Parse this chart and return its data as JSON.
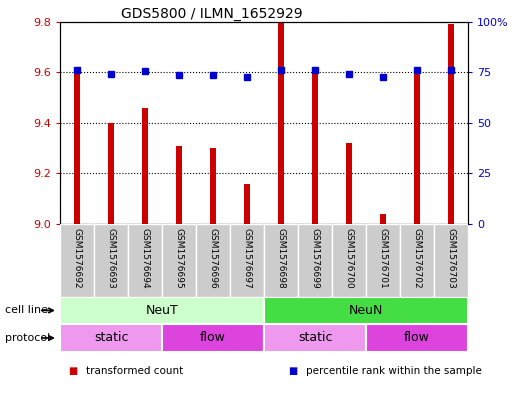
{
  "title": "GDS5800 / ILMN_1652929",
  "samples": [
    "GSM1576692",
    "GSM1576693",
    "GSM1576694",
    "GSM1576695",
    "GSM1576696",
    "GSM1576697",
    "GSM1576698",
    "GSM1576699",
    "GSM1576700",
    "GSM1576701",
    "GSM1576702",
    "GSM1576703"
  ],
  "red_values": [
    9.62,
    9.4,
    9.46,
    9.31,
    9.3,
    9.16,
    9.8,
    9.6,
    9.32,
    9.04,
    9.6,
    9.79
  ],
  "blue_values": [
    76,
    74,
    75.5,
    73.8,
    73.5,
    72.8,
    76,
    76,
    74.2,
    72.5,
    76,
    76.2
  ],
  "ylim_left": [
    9.0,
    9.8
  ],
  "ylim_right": [
    0,
    100
  ],
  "yticks_left": [
    9.0,
    9.2,
    9.4,
    9.6,
    9.8
  ],
  "yticks_right": [
    0,
    25,
    50,
    75,
    100
  ],
  "bar_color": "#cc0000",
  "dot_color": "#0000cc",
  "cell_line_neut_color": "#ccffcc",
  "cell_line_neun_color": "#44dd44",
  "cell_line_labels": [
    "NeuT",
    "NeuN"
  ],
  "cell_line_ranges": [
    [
      0,
      6
    ],
    [
      6,
      12
    ]
  ],
  "protocol_static_color": "#ee99ee",
  "protocol_flow_color": "#dd44dd",
  "protocol_labels": [
    "static",
    "flow",
    "static",
    "flow"
  ],
  "protocol_ranges": [
    [
      0,
      3
    ],
    [
      3,
      6
    ],
    [
      6,
      9
    ],
    [
      9,
      12
    ]
  ],
  "legend_items": [
    {
      "color": "#cc0000",
      "label": "transformed count"
    },
    {
      "color": "#0000cc",
      "label": "percentile rank within the sample"
    }
  ],
  "cell_line_row_label": "cell line",
  "protocol_row_label": "protocol",
  "sample_label_bg": "#cccccc",
  "background_color": "#ffffff"
}
